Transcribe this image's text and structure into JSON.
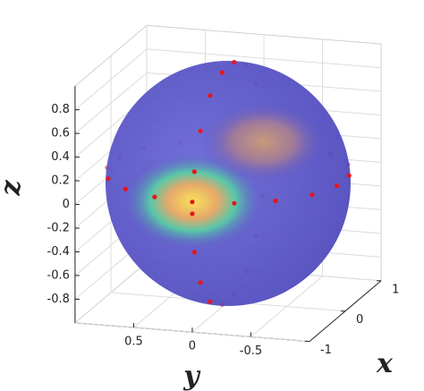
{
  "chart_data": {
    "type": "scatter3d",
    "xlabel": "x",
    "ylabel": "y",
    "zlabel": "z",
    "xlim": [
      -1,
      1
    ],
    "ylim": [
      -1,
      1
    ],
    "zlim": [
      -1,
      1
    ],
    "xticks": [
      -1,
      0,
      1
    ],
    "yticks": [
      0.5,
      0,
      -0.5
    ],
    "zticks": [
      -0.8,
      -0.6,
      -0.4,
      -0.2,
      0,
      0.2,
      0.4,
      0.6,
      0.8
    ],
    "grid": true,
    "sphere_color": "#5a55c8",
    "color": "#e8151a",
    "series": [
      {
        "x": [
          1,
          0.94,
          0.77,
          0.5,
          0.17,
          -0.17,
          -0.5,
          -0.77,
          -0.94,
          -1,
          -0.94,
          -0.77,
          -0.5,
          -0.17,
          0.17,
          0.5,
          0.77,
          0.94
        ],
        "y": [
          0,
          0.34,
          0.64,
          0.87,
          0.98,
          0.98,
          0.87,
          0.64,
          0.34,
          0,
          -0.34,
          -0.64,
          -0.87,
          -0.98,
          -0.98,
          -0.87,
          -0.64,
          -0.34
        ],
        "z": [
          0.1,
          0.1,
          0.1,
          0.1,
          0.1,
          0.1,
          0.1,
          0.1,
          0.1,
          0.1,
          0.1,
          0.1,
          0.1,
          0.1,
          0.1,
          0.1,
          0.1,
          0.1
        ]
      },
      {
        "x": [
          1,
          0.94,
          0.77,
          0.5,
          0.17,
          -0.17,
          -0.5,
          -0.77,
          -0.94,
          -1,
          -0.94,
          -0.77,
          -0.5,
          -0.17,
          0.17,
          0.5,
          0.77,
          0.94
        ],
        "y": [
          0,
          0,
          0,
          0,
          0,
          0,
          0,
          0,
          0,
          0,
          0,
          0,
          0,
          0,
          0,
          0,
          0,
          0
        ],
        "z": [
          0,
          0.34,
          0.64,
          0.87,
          0.98,
          0.98,
          0.87,
          0.64,
          0.34,
          0,
          -0.34,
          -0.64,
          -0.87,
          -0.98,
          -0.98,
          -0.87,
          -0.64,
          -0.34
        ]
      }
    ]
  }
}
